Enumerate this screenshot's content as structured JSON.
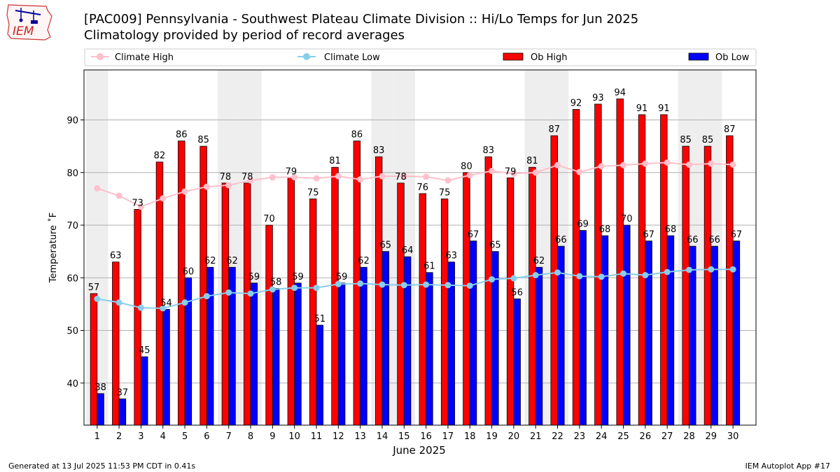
{
  "header": {
    "logo_text": "IEM",
    "title": "[PAC009] Pennsylvania - Southwest Plateau Climate Division :: Hi/Lo Temps for Jun 2025",
    "subtitle": "Climatology provided by period of record averages"
  },
  "footer": {
    "generated": "Generated at 13 Jul 2025 11:53 PM CDT in 0.41s",
    "app": "IEM Autoplot App #17"
  },
  "chart_data": {
    "type": "bar",
    "xlabel": "June 2025",
    "ylabel": "Temperature ˚F",
    "ylim": [
      32,
      99.5
    ],
    "yticks": [
      40,
      50,
      60,
      70,
      80,
      90
    ],
    "grid": true,
    "legend_position": "top",
    "weekend_shading_days": [
      1,
      7,
      8,
      14,
      15,
      21,
      22,
      28,
      29
    ],
    "categories": [
      "1",
      "2",
      "3",
      "4",
      "5",
      "6",
      "7",
      "8",
      "9",
      "10",
      "11",
      "12",
      "13",
      "14",
      "15",
      "16",
      "17",
      "18",
      "19",
      "20",
      "21",
      "22",
      "23",
      "24",
      "25",
      "26",
      "27",
      "28",
      "29",
      "30"
    ],
    "series": [
      {
        "name": "Ob High",
        "kind": "bar",
        "color": "#ff0000",
        "values": [
          57,
          63,
          73,
          82,
          86,
          85,
          78,
          78,
          70,
          79,
          75,
          81,
          86,
          83,
          78,
          76,
          75,
          80,
          83,
          79,
          81,
          87,
          92,
          93,
          94,
          91,
          91,
          85,
          85,
          87
        ]
      },
      {
        "name": "Ob Low",
        "kind": "bar",
        "color": "#0000ff",
        "values": [
          38,
          37,
          45,
          54,
          60,
          62,
          62,
          59,
          58,
          59,
          51,
          59,
          62,
          65,
          64,
          61,
          63,
          67,
          65,
          56,
          62,
          66,
          69,
          68,
          70,
          67,
          68,
          66,
          66,
          67
        ]
      },
      {
        "name": "Climate High",
        "kind": "line",
        "color": "#ffc0cb",
        "values": [
          77.0,
          75.6,
          73.5,
          75.1,
          76.4,
          77.3,
          77.6,
          78.5,
          79.1,
          79.1,
          78.9,
          79.3,
          78.7,
          79.3,
          79.3,
          79.2,
          78.5,
          79.5,
          80.3,
          79.8,
          80.0,
          81.4,
          80.1,
          81.2,
          81.4,
          81.7,
          81.9,
          81.5,
          81.7,
          81.5
        ]
      },
      {
        "name": "Climate Low",
        "kind": "line",
        "color": "#87ceeb",
        "values": [
          56.0,
          55.3,
          54.3,
          54.2,
          55.3,
          56.5,
          57.2,
          57.0,
          57.8,
          58.1,
          58.1,
          58.8,
          58.9,
          58.7,
          58.6,
          58.7,
          58.6,
          58.5,
          59.7,
          59.9,
          60.5,
          61.0,
          60.3,
          60.2,
          60.8,
          60.5,
          61.1,
          61.5,
          61.6,
          61.6
        ]
      }
    ]
  }
}
